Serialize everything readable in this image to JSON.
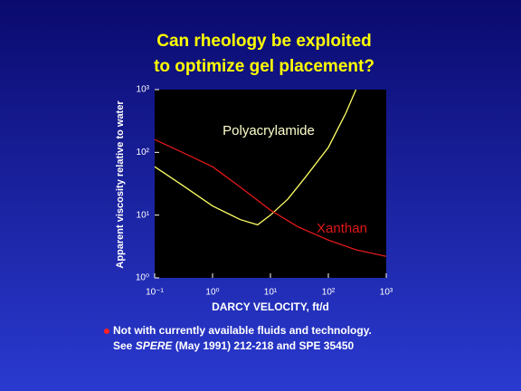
{
  "chart_data": {
    "type": "line",
    "title": [
      "Can rheology be exploited",
      "to optimize gel placement?"
    ],
    "x_label": "DARCY VELOCITY, ft/d",
    "y_label": "Apparent viscosity relative to water",
    "log_x": true,
    "log_y": true,
    "xlim": [
      0.1,
      1000
    ],
    "ylim": [
      1,
      1000
    ],
    "xticks": [
      {
        "value": 0.1,
        "label": "10⁻¹"
      },
      {
        "value": 1,
        "label": "10⁰"
      },
      {
        "value": 10,
        "label": "10¹"
      },
      {
        "value": 100,
        "label": "10²"
      },
      {
        "value": 1000,
        "label": "10³"
      }
    ],
    "yticks": [
      {
        "value": 1,
        "label": "10⁰"
      },
      {
        "value": 10,
        "label": "10¹"
      },
      {
        "value": 100,
        "label": "10²"
      },
      {
        "value": 1000,
        "label": "10³"
      }
    ],
    "series": [
      {
        "name": "Polyacrylamide",
        "color": "#ffff66",
        "x": [
          0.1,
          0.3,
          1,
          3,
          6,
          10,
          20,
          40,
          100,
          200,
          300
        ],
        "values": [
          59,
          30,
          14,
          8.5,
          7,
          10,
          18,
          40,
          120,
          420,
          1000
        ]
      },
      {
        "name": "Xanthan",
        "color": "#e01818",
        "x": [
          0.1,
          0.3,
          1,
          3,
          10,
          30,
          100,
          300,
          1000
        ],
        "values": [
          160,
          100,
          59,
          28,
          12,
          6.5,
          4,
          2.8,
          2.2
        ]
      }
    ],
    "footnote": {
      "line1": "Not with currently available fluids and technology.",
      "line2": [
        "See ",
        "SPERE",
        " (May 1991) 212-218 and SPE 35450"
      ]
    }
  }
}
